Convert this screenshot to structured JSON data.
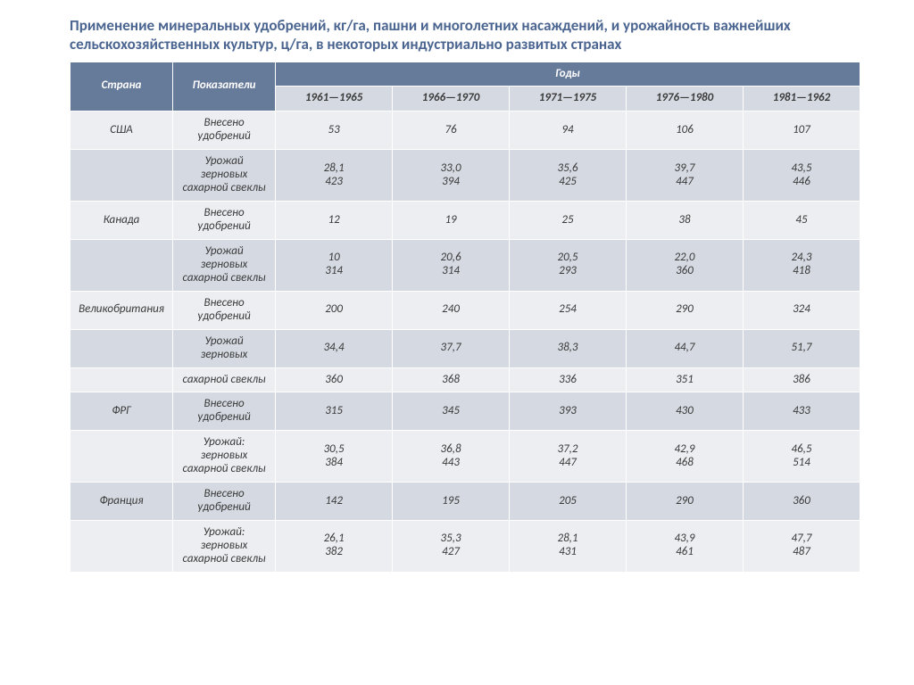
{
  "title": "Применение минеральных удобрений, кг/га, пашни и многолетних насаждений, и урожайность важнейших сельскохозяйственных культур, ц/га, в некоторых индустриально развитых странах",
  "header": {
    "country": "Страна",
    "indicator": "Показатели",
    "years_label": "Годы",
    "years": [
      "1961—1965",
      "1966—1970",
      "1971—1975",
      "1976—1980",
      "1981—1962"
    ]
  },
  "labels": {
    "fert": "Внесено\nудобрений",
    "grain_beet": "Урожай\nзерновых\nсахарной свеклы",
    "grain": "Урожай\nзерновых",
    "beet": "сахарной свеклы",
    "yield_colon": "Урожай:\nзерновых\nсахарной свеклы"
  },
  "rows": [
    {
      "country": "США",
      "kind": "fert",
      "band": "light",
      "cells": [
        "53",
        "76",
        "94",
        "106",
        "107"
      ]
    },
    {
      "country": "",
      "kind": "grain_beet",
      "band": "dark",
      "cells": [
        "28,1\n423",
        "33,0\n394",
        "35,6\n425",
        "39,7\n447",
        "43,5\n446"
      ]
    },
    {
      "country": "Канада",
      "kind": "fert",
      "band": "light",
      "cells": [
        "12",
        "19",
        "25",
        "38",
        "45"
      ]
    },
    {
      "country": "",
      "kind": "grain_beet",
      "band": "dark",
      "cells": [
        "10\n314",
        "20,6\n314",
        "20,5\n293",
        "22,0\n360",
        "24,3\n418"
      ]
    },
    {
      "country": "Великобритания",
      "kind": "fert",
      "band": "light",
      "cells": [
        "200",
        "240",
        "254",
        "290",
        "324"
      ]
    },
    {
      "country": "",
      "kind": "grain",
      "band": "dark",
      "cells": [
        "34,4",
        "37,7",
        "38,3",
        "44,7",
        "51,7"
      ]
    },
    {
      "country": "",
      "kind": "beet",
      "band": "light",
      "cells": [
        "360",
        "368",
        "336",
        "351",
        "386"
      ]
    },
    {
      "country": "ФРГ",
      "kind": "fert",
      "band": "dark",
      "cells": [
        "315",
        "345",
        "393",
        "430",
        "433"
      ]
    },
    {
      "country": "",
      "kind": "yield_colon",
      "band": "light",
      "cells": [
        "30,5\n384",
        "36,8\n443",
        "37,2\n447",
        "42,9\n468",
        "46,5\n514"
      ]
    },
    {
      "country": "Франция",
      "kind": "fert",
      "band": "dark",
      "cells": [
        "142",
        "195",
        "205",
        "290",
        "360"
      ]
    },
    {
      "country": "",
      "kind": "yield_colon",
      "band": "light",
      "cells": [
        "26,1\n382",
        "35,3\n427",
        "28,1\n431",
        "43,9\n461",
        "47,7\n487"
      ]
    }
  ],
  "colors": {
    "title": "#4b6591",
    "header_bg": "#667a99",
    "header_fg": "#ffffff",
    "subheader_bg": "#d5d9e1",
    "band_light": "#eceef2",
    "band_dark": "#d5d9e1",
    "border": "#ffffff",
    "text": "#3a3a3a",
    "page_bg": "#ffffff"
  },
  "typography": {
    "title_fontsize": 17,
    "title_weight": "bold",
    "cell_fontsize": 13,
    "cell_style": "italic"
  }
}
